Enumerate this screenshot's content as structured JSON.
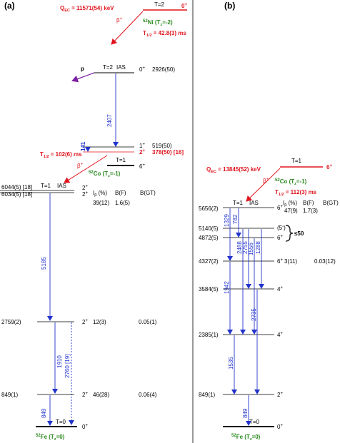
{
  "panel_a": {
    "label": "(a)",
    "parent": {
      "jp": "0",
      "jp_sup": "+",
      "t": "T=2",
      "qec": "Q",
      "qec_sub": "EC",
      "qec_val": " = 11571(54) keV",
      "beta": "β",
      "beta_sup": "+",
      "nuc_mass": "52",
      "nuc_el": "Ni",
      "tz": " (T",
      "tz_sub": "z",
      "tz_end": "=-2)",
      "half": "T",
      "half_sub": "1/2",
      "half_val": " = 42.8(3) ms"
    },
    "ias": {
      "t": "T=2",
      "ias": "IAS",
      "jp": "0",
      "jp_sup": "+",
      "energy": "2926(50)",
      "proton": "p"
    },
    "co_levels": [
      {
        "jp": "1",
        "jp_sup": "+",
        "energy": "519(50)"
      },
      {
        "jp": "2",
        "jp_sup": "+",
        "energy": "378(50) [16]"
      },
      {
        "jp": "6",
        "jp_sup": "+",
        "t": "T=1"
      }
    ],
    "co_half": "T",
    "co_half_sub": "1/2",
    "co_half_val": " = 102(6) ms",
    "co_beta": "β",
    "co_beta_sup": "+",
    "co_nuc_mass": "52",
    "co_nuc_el": "Co",
    "co_tz": " (T",
    "co_tz_sub": "z",
    "co_tz_end": "=-1)",
    "gamma_141": "141",
    "gamma_2407": "2407",
    "fe_ias": {
      "e1": "6044(5) [18]",
      "e2": "6034(5) [18]",
      "t": "T=1",
      "ias": "IAS",
      "jp1": "2",
      "jp2": "2",
      "jp_sup": "+"
    },
    "headers": {
      "ib": "I",
      "ib_sub": "β",
      "ib_end": " (%)",
      "bf": "B(F)",
      "bgt": "B(GT)"
    },
    "ias_row": {
      "ib": "39(12)",
      "bf": "1.6(5)"
    },
    "gamma_5185": "5185",
    "l2759": {
      "energy": "2759(2)",
      "jp": "2",
      "jp_sup": "+",
      "ib": "12(3)",
      "bgt": "0.05(1)"
    },
    "gamma_1910": "1910",
    "gamma_2760": "2760 [19]",
    "l849": {
      "energy": "849(1)",
      "jp": "2",
      "jp_sup": "+",
      "ib": "46(28)",
      "bgt": "0.06(4)"
    },
    "gamma_849": "849",
    "gs": {
      "t": "T=0",
      "jp": "0",
      "jp_sup": "+",
      "nuc_mass": "52",
      "nuc_el": "Fe",
      "tz": " (T",
      "tz_sub": "z",
      "tz_end": "=0)"
    }
  },
  "panel_b": {
    "label": "(b)",
    "parent": {
      "t": "T=1",
      "jp": "6",
      "jp_sup": "+",
      "qec": "Q",
      "qec_sub": "EC",
      "qec_val": " = 13845(52) keV",
      "beta": "β",
      "beta_sup": "+",
      "nuc_mass": "52",
      "nuc_el": "Co",
      "tz": " (T",
      "tz_sub": "z",
      "tz_end": "=-1)",
      "half": "T",
      "half_sub": "1/2",
      "half_val": " = 112(3) ms"
    },
    "ias": {
      "energy": "5656(2)",
      "t": "T=1",
      "ias": "IAS",
      "jp": "6",
      "jp_sup": "+",
      "ib": "47(9)",
      "bf": "1.7(3)"
    },
    "headers": {
      "ib": "I",
      "ib_sub": "β",
      "ib_end": " (%)",
      "bf": "B(F)",
      "bgt": "B(GT)"
    },
    "l5140": {
      "energy": "5140(5)",
      "jp": "(5",
      "jp_sup": "-",
      "jp_end": ")"
    },
    "l4872": {
      "energy": "4872(5)",
      "jp": "6",
      "jp_sup": "+",
      "brace_label": "≤50"
    },
    "l4327": {
      "energy": "4327(2)",
      "jp": "6",
      "jp_sup": "+",
      "ib": "3(11)",
      "bgt": "0.03(12)"
    },
    "l3584": {
      "energy": "3584(5)",
      "jp": "4",
      "jp_sup": "+"
    },
    "l2385": {
      "energy": "2385(1)",
      "jp": "4",
      "jp_sup": "+"
    },
    "l849": {
      "energy": "849(1)",
      "jp": "2",
      "jp_sup": "+"
    },
    "gs": {
      "t": "T=0",
      "jp": "0",
      "jp_sup": "+",
      "nuc_mass": "52",
      "nuc_el": "Fe",
      "tz": " (T",
      "tz_sub": "z",
      "tz_end": "=0)"
    },
    "gammas": [
      "1329",
      "782",
      "2488",
      "2755",
      "1556",
      "1288",
      "1942",
      "2735",
      "1535",
      "849"
    ]
  },
  "colors": {
    "red": "#e0141c",
    "blue": "#2233cc",
    "green": "#2a8a1e",
    "purple": "#7a1fa2"
  }
}
